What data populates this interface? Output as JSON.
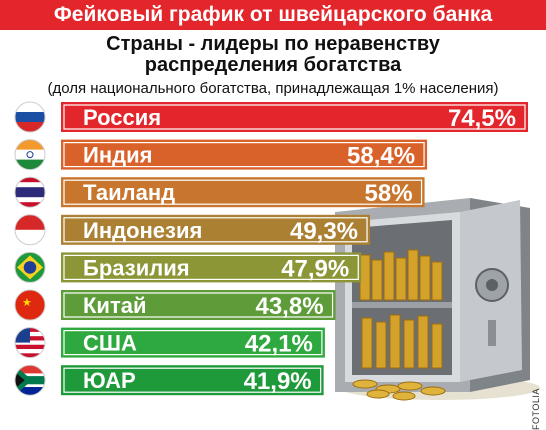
{
  "banner": "Фейковый график от швейцарского банка",
  "credit": "FOTOLIA",
  "chart_data": {
    "type": "bar",
    "title": "Страны - лидеры по неравенству распределения богатства",
    "title_lines": [
      "Страны - лидеры по неравенству",
      "распределения богатства"
    ],
    "subtitle": "(доля национального богатства, принадлежащая 1% населения)",
    "categories": [
      "Россия",
      "Индия",
      "Таиланд",
      "Индонезия",
      "Бразилия",
      "Китай",
      "США",
      "ЮАР"
    ],
    "values": [
      74.5,
      58.4,
      58,
      49.3,
      47.9,
      43.8,
      42.1,
      41.9
    ],
    "value_labels": [
      "74,5%",
      "58,4%",
      "58%",
      "49,3%",
      "47,9%",
      "43,8%",
      "42,1%",
      "41,9%"
    ],
    "colors": [
      "#e3262b",
      "#d9622b",
      "#c8762d",
      "#ab8032",
      "#8c9636",
      "#5e9c3a",
      "#2ea93f",
      "#1f9a3b"
    ],
    "flag_icons": [
      "russia-flag-icon",
      "india-flag-icon",
      "thailand-flag-icon",
      "indonesia-flag-icon",
      "brazil-flag-icon",
      "china-flag-icon",
      "usa-flag-icon",
      "south-africa-flag-icon"
    ],
    "illustration": "safe-with-gold-coins",
    "xlabel": "",
    "ylabel": "",
    "xlim": [
      0,
      74.5
    ],
    "grid": false,
    "legend": "none"
  }
}
